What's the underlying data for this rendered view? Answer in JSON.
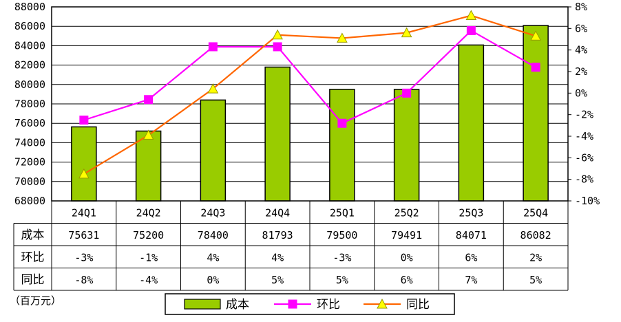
{
  "chart_data": {
    "type": "bar",
    "categories": [
      "24Q1",
      "24Q2",
      "24Q3",
      "24Q4",
      "25Q1",
      "25Q2",
      "25Q3",
      "25Q4"
    ],
    "series": [
      {
        "name": "成本",
        "type": "bar",
        "axis": "left",
        "color": "#99cc00",
        "values": [
          75631,
          75200,
          78400,
          81793,
          79500,
          79491,
          84071,
          86082
        ]
      },
      {
        "name": "环比",
        "type": "line",
        "axis": "right",
        "color": "#ff00ff",
        "marker": "square",
        "values": [
          -2.5,
          -0.6,
          4.3,
          4.3,
          -2.8,
          0.0,
          5.8,
          2.4
        ]
      },
      {
        "name": "同比",
        "type": "line",
        "axis": "right",
        "color": "#ff6600",
        "marker": "triangle",
        "values": [
          -7.5,
          -3.9,
          0.4,
          5.4,
          5.1,
          5.6,
          7.2,
          5.3
        ]
      }
    ],
    "y_left": {
      "min": 68000,
      "max": 88000,
      "step": 2000,
      "ticks": [
        "68000",
        "70000",
        "72000",
        "74000",
        "76000",
        "78000",
        "80000",
        "82000",
        "84000",
        "86000",
        "88000"
      ]
    },
    "y_right": {
      "min": -10,
      "max": 8,
      "step": 2,
      "ticks": [
        "-10%",
        "-8%",
        "-6%",
        "-4%",
        "-2%",
        "0%",
        "2%",
        "4%",
        "6%",
        "8%"
      ]
    },
    "table": {
      "rows": [
        {
          "label": "成本",
          "cells": [
            "75631",
            "75200",
            "78400",
            "81793",
            "79500",
            "79491",
            "84071",
            "86082"
          ]
        },
        {
          "label": "环比",
          "cells": [
            "-3%",
            "-1%",
            "4%",
            "4%",
            "-3%",
            "0%",
            "6%",
            "2%"
          ]
        },
        {
          "label": "同比",
          "cells": [
            "-8%",
            "-4%",
            "0%",
            "5%",
            "5%",
            "6%",
            "7%",
            "5%"
          ]
        }
      ]
    },
    "legend": {
      "position": "bottom",
      "items": [
        "成本",
        "环比",
        "同比"
      ]
    },
    "unit_label": "（百万元）",
    "grid": "horizontal"
  }
}
